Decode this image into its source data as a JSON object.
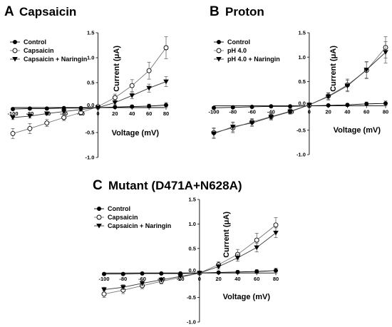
{
  "chart_data": [
    {
      "id": "A",
      "type": "line",
      "letter": "A",
      "title": "Capsaicin",
      "xlabel": "Voltage (mV)",
      "ylabel": "Current (μA)",
      "xlim": [
        -100,
        80
      ],
      "ylim": [
        -1.0,
        1.5
      ],
      "x_ticks": [
        -100,
        -80,
        -60,
        -40,
        -20,
        0,
        20,
        40,
        60,
        80
      ],
      "y_ticks": [
        -1.0,
        -0.5,
        0.0,
        0.5,
        1.0,
        1.5
      ],
      "x_tick_labels": [
        "-100",
        "-80",
        "-60",
        "-40",
        "-20",
        "0",
        "20",
        "40",
        "60",
        "80"
      ],
      "y_tick_labels": [
        "-1.0",
        "-0.5",
        "0.0",
        "0.5",
        "1.0",
        "1.5"
      ],
      "x": [
        -100,
        -80,
        -60,
        -40,
        -20,
        0,
        20,
        40,
        60,
        80
      ],
      "series": [
        {
          "name": "Control",
          "marker": "filled-circle",
          "values": [
            -0.03,
            -0.02,
            -0.02,
            -0.01,
            -0.01,
            0.0,
            0.01,
            0.02,
            0.03,
            0.05
          ],
          "errors": [
            0.02,
            0.02,
            0.02,
            0.01,
            0.01,
            0.01,
            0.02,
            0.03,
            0.04,
            0.05
          ]
        },
        {
          "name": "Capsaicin",
          "marker": "open-circle",
          "values": [
            -0.52,
            -0.42,
            -0.31,
            -0.2,
            -0.1,
            0.02,
            0.2,
            0.44,
            0.74,
            1.2
          ],
          "errors": [
            0.1,
            0.1,
            0.07,
            0.06,
            0.05,
            0.03,
            0.07,
            0.12,
            0.17,
            0.22
          ]
        },
        {
          "name": "Capsaicin + Naringin",
          "marker": "filled-triangle-down",
          "values": [
            -0.2,
            -0.17,
            -0.12,
            -0.08,
            -0.04,
            0.0,
            0.1,
            0.24,
            0.39,
            0.52
          ],
          "errors": [
            0.04,
            0.04,
            0.03,
            0.03,
            0.02,
            0.02,
            0.04,
            0.06,
            0.08,
            0.1
          ]
        }
      ]
    },
    {
      "id": "B",
      "type": "line",
      "letter": "B",
      "title": "Proton",
      "xlabel": "Voltage (mV)",
      "ylabel": "Current (μA)",
      "xlim": [
        -100,
        80
      ],
      "ylim": [
        -1.0,
        1.5
      ],
      "x_ticks": [
        -100,
        -80,
        -60,
        -40,
        -20,
        0,
        20,
        40,
        60,
        80
      ],
      "y_ticks": [
        -1.0,
        -0.5,
        0.0,
        0.5,
        1.0,
        1.5
      ],
      "x_tick_labels": [
        "-100",
        "-80",
        "-60",
        "-40",
        "-20",
        "0",
        "20",
        "40",
        "60",
        "80"
      ],
      "y_tick_labels": [
        "-1.0",
        "-0.5",
        "0.0",
        "0.5",
        "1.0",
        "1.5"
      ],
      "x": [
        -100,
        -80,
        -60,
        -40,
        -20,
        0,
        20,
        40,
        60,
        80
      ],
      "series": [
        {
          "name": "Control",
          "marker": "filled-circle",
          "values": [
            -0.04,
            -0.03,
            -0.02,
            -0.01,
            -0.01,
            0.0,
            0.01,
            0.02,
            0.04,
            0.05
          ],
          "errors": [
            0.02,
            0.02,
            0.02,
            0.01,
            0.01,
            0.01,
            0.02,
            0.03,
            0.04,
            0.05
          ]
        },
        {
          "name": "pH 4.0",
          "marker": "open-circle",
          "values": [
            -0.55,
            -0.45,
            -0.33,
            -0.22,
            -0.11,
            0.02,
            0.2,
            0.43,
            0.73,
            1.2
          ],
          "errors": [
            0.1,
            0.1,
            0.07,
            0.06,
            0.05,
            0.03,
            0.07,
            0.12,
            0.17,
            0.22
          ]
        },
        {
          "name": "pH 4.0 + Naringin",
          "marker": "filled-triangle-down",
          "values": [
            -0.57,
            -0.43,
            -0.35,
            -0.23,
            -0.12,
            0.02,
            0.19,
            0.41,
            0.74,
            1.1
          ],
          "errors": [
            0.1,
            0.1,
            0.07,
            0.06,
            0.05,
            0.03,
            0.07,
            0.12,
            0.17,
            0.22
          ]
        }
      ]
    },
    {
      "id": "C",
      "type": "line",
      "letter": "C",
      "title": "Mutant (D471A+N628A)",
      "xlabel": "Voltage (mV)",
      "ylabel": "Current (μA)",
      "xlim": [
        -100,
        80
      ],
      "ylim": [
        -1.0,
        1.5
      ],
      "x_ticks": [
        -100,
        -80,
        -60,
        -40,
        -20,
        0,
        20,
        40,
        60,
        80
      ],
      "y_ticks": [
        -1.0,
        -0.5,
        0.0,
        0.5,
        1.0,
        1.5
      ],
      "x_tick_labels": [
        "-100",
        "-80",
        "-60",
        "-40",
        "-20",
        "0",
        "20",
        "40",
        "60",
        "80"
      ],
      "y_tick_labels": [
        "-1.0",
        "-0.5",
        "0.0",
        "0.5",
        "1.0",
        "1.5"
      ],
      "x": [
        -100,
        -80,
        -60,
        -40,
        -20,
        0,
        20,
        40,
        60,
        80
      ],
      "series": [
        {
          "name": "Control",
          "marker": "filled-circle",
          "values": [
            -0.02,
            -0.02,
            -0.01,
            -0.01,
            -0.01,
            0.0,
            0.01,
            0.02,
            0.03,
            0.05
          ],
          "errors": [
            0.02,
            0.02,
            0.02,
            0.01,
            0.01,
            0.01,
            0.02,
            0.03,
            0.04,
            0.05
          ]
        },
        {
          "name": "Capsaicin",
          "marker": "open-circle",
          "values": [
            -0.43,
            -0.35,
            -0.26,
            -0.17,
            -0.09,
            0.0,
            0.17,
            0.38,
            0.67,
            0.98
          ],
          "errors": [
            0.07,
            0.07,
            0.06,
            0.05,
            0.04,
            0.02,
            0.06,
            0.1,
            0.14,
            0.15
          ]
        },
        {
          "name": "Capsaicin + Naringin",
          "marker": "filled-triangle-down",
          "values": [
            -0.34,
            -0.29,
            -0.21,
            -0.14,
            -0.07,
            0.0,
            0.13,
            0.31,
            0.52,
            0.82
          ],
          "errors": [
            0.05,
            0.05,
            0.05,
            0.04,
            0.03,
            0.02,
            0.05,
            0.07,
            0.09,
            0.1
          ]
        }
      ]
    }
  ]
}
